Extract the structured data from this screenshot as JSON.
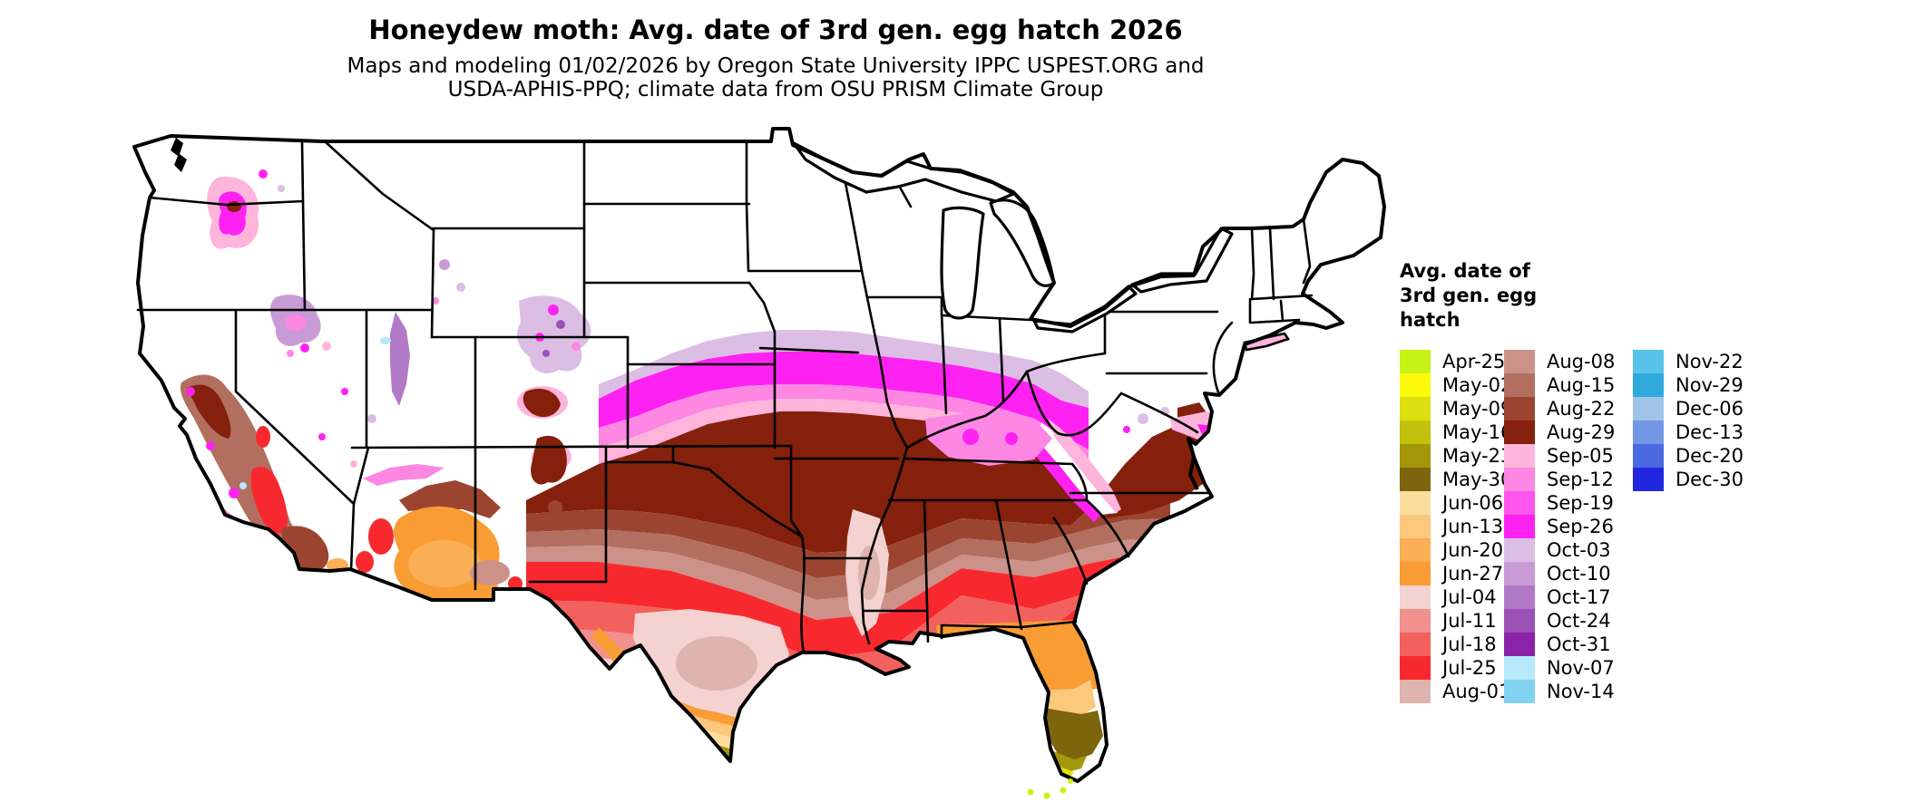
{
  "title": "Honeydew moth: Avg. date of 3rd gen. egg hatch 2026",
  "subtitle_line1": "Maps and modeling 01/02/2026 by Oregon State University IPPC USPEST.ORG and",
  "subtitle_line2": "USDA-APHIS-PPQ; climate data from OSU PRISM Climate Group",
  "legend": {
    "title": "Avg. date of\n3rd gen. egg\nhatch",
    "columns": [
      [
        {
          "label": "Apr-25",
          "color": "#C6F316"
        },
        {
          "label": "May-02",
          "color": "#FCFA0A"
        },
        {
          "label": "May-09",
          "color": "#DEDE10"
        },
        {
          "label": "May-16",
          "color": "#C3C00E"
        },
        {
          "label": "May-23",
          "color": "#A39709"
        },
        {
          "label": "May-30",
          "color": "#7D650D"
        },
        {
          "label": "Jun-06",
          "color": "#FBDE9E"
        },
        {
          "label": "Jun-13",
          "color": "#FBC87C"
        },
        {
          "label": "Jun-20",
          "color": "#FAAE55"
        },
        {
          "label": "Jun-27",
          "color": "#F99C34"
        },
        {
          "label": "Jul-04",
          "color": "#F3D2CF"
        },
        {
          "label": "Jul-11",
          "color": "#F1918E"
        },
        {
          "label": "Jul-18",
          "color": "#F2615D"
        },
        {
          "label": "Jul-25",
          "color": "#F8292E"
        },
        {
          "label": "Aug-01",
          "color": "#DFB3AE"
        }
      ],
      [
        {
          "label": "Aug-08",
          "color": "#CC9189"
        },
        {
          "label": "Aug-15",
          "color": "#B26F5F"
        },
        {
          "label": "Aug-22",
          "color": "#9B4530"
        },
        {
          "label": "Aug-29",
          "color": "#84200B"
        },
        {
          "label": "Sep-05",
          "color": "#FFB4DC"
        },
        {
          "label": "Sep-12",
          "color": "#FE87E3"
        },
        {
          "label": "Sep-19",
          "color": "#FE55EC"
        },
        {
          "label": "Sep-26",
          "color": "#FE22F2"
        },
        {
          "label": "Oct-03",
          "color": "#DCBEE5"
        },
        {
          "label": "Oct-10",
          "color": "#C89BD7"
        },
        {
          "label": "Oct-17",
          "color": "#B279C7"
        },
        {
          "label": "Oct-24",
          "color": "#9C51B7"
        },
        {
          "label": "Oct-31",
          "color": "#8A23A7"
        },
        {
          "label": "Nov-07",
          "color": "#B6E9FA"
        },
        {
          "label": "Nov-14",
          "color": "#81D3F1"
        }
      ],
      [
        {
          "label": "Nov-22",
          "color": "#57C2EA"
        },
        {
          "label": "Nov-29",
          "color": "#30AADD"
        },
        {
          "label": "Dec-06",
          "color": "#A0C4E9"
        },
        {
          "label": "Dec-13",
          "color": "#7497E5"
        },
        {
          "label": "Dec-20",
          "color": "#4B69E1"
        },
        {
          "label": "Dec-30",
          "color": "#2127DF"
        }
      ]
    ]
  },
  "map": {
    "outline_color": "#000000",
    "palette": {
      "white": "#FFFFFF",
      "chartreuse": "#C6F316",
      "yellow": "#E0E010",
      "olive": "#A39709",
      "darkolive": "#7D650D",
      "lightpeach": "#FBDE9E",
      "peach": "#FBC87C",
      "midorange": "#FAAE55",
      "orange": "#F99C34",
      "palepink": "#F3D2CF",
      "lightsalmon": "#F1918E",
      "salmon": "#F2615D",
      "red": "#F8292E",
      "dustypink": "#DFB3AE",
      "dustyrose": "#CC9189",
      "rosebrown": "#B26F5F",
      "brick": "#9B4530",
      "darkbrown": "#84200B",
      "lightpink": "#FFB4DC",
      "pink": "#FE87E3",
      "magenta": "#FE22F2",
      "lavender": "#DCBEE5",
      "lilac": "#C89BD7",
      "mediumpurple": "#B279C7",
      "purple": "#9C51B7",
      "palecyan": "#B6E9FA",
      "lightcyan": "#81D3F1"
    }
  }
}
